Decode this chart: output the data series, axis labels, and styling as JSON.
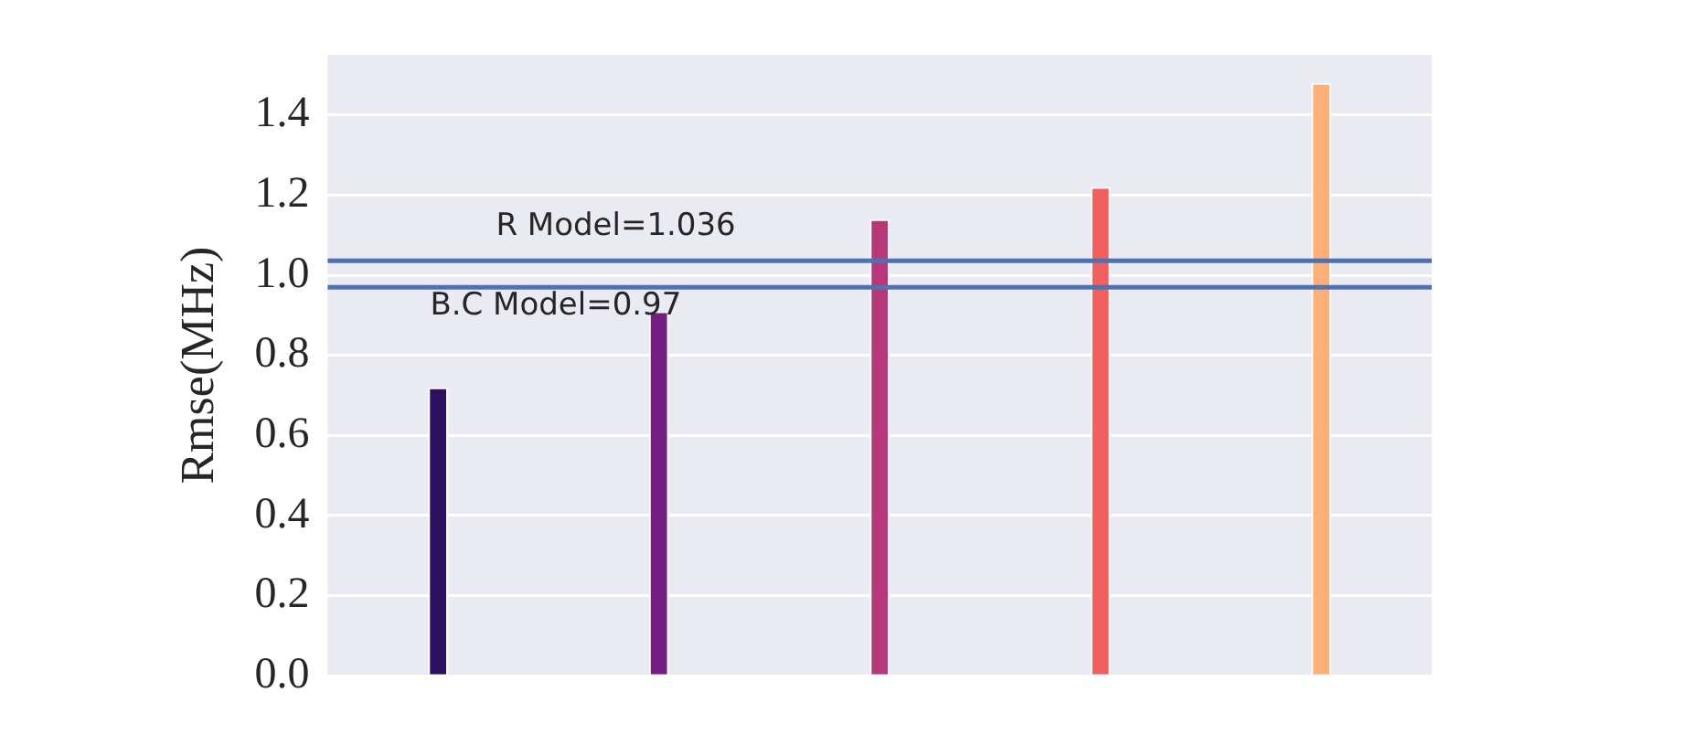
{
  "chart_data": {
    "type": "bar",
    "ylabel": "Rmse(MHz)",
    "categories": [
      null,
      null,
      null,
      null,
      null
    ],
    "values": [
      0.72,
      0.91,
      1.14,
      1.22,
      1.48
    ],
    "colors": [
      "#2d1160",
      "#721f81",
      "#b73779",
      "#f1605d",
      "#feaf77"
    ],
    "ylim": [
      0,
      1.55
    ],
    "yticks": [
      {
        "value": 0,
        "label": "0.0"
      },
      0.2,
      0.4,
      0.6,
      0.8,
      {
        "value": 1,
        "label": "1.0"
      },
      1.2,
      1.4
    ],
    "grid": "y",
    "legend": false,
    "ref_lines": [
      {
        "axis": "y",
        "value": 1.036,
        "label": "R Model=1.036",
        "color": "#4c72b0"
      },
      {
        "axis": "y",
        "value": 0.97,
        "label": "B.C Model=0.97",
        "color": "#4c72b0"
      }
    ]
  }
}
